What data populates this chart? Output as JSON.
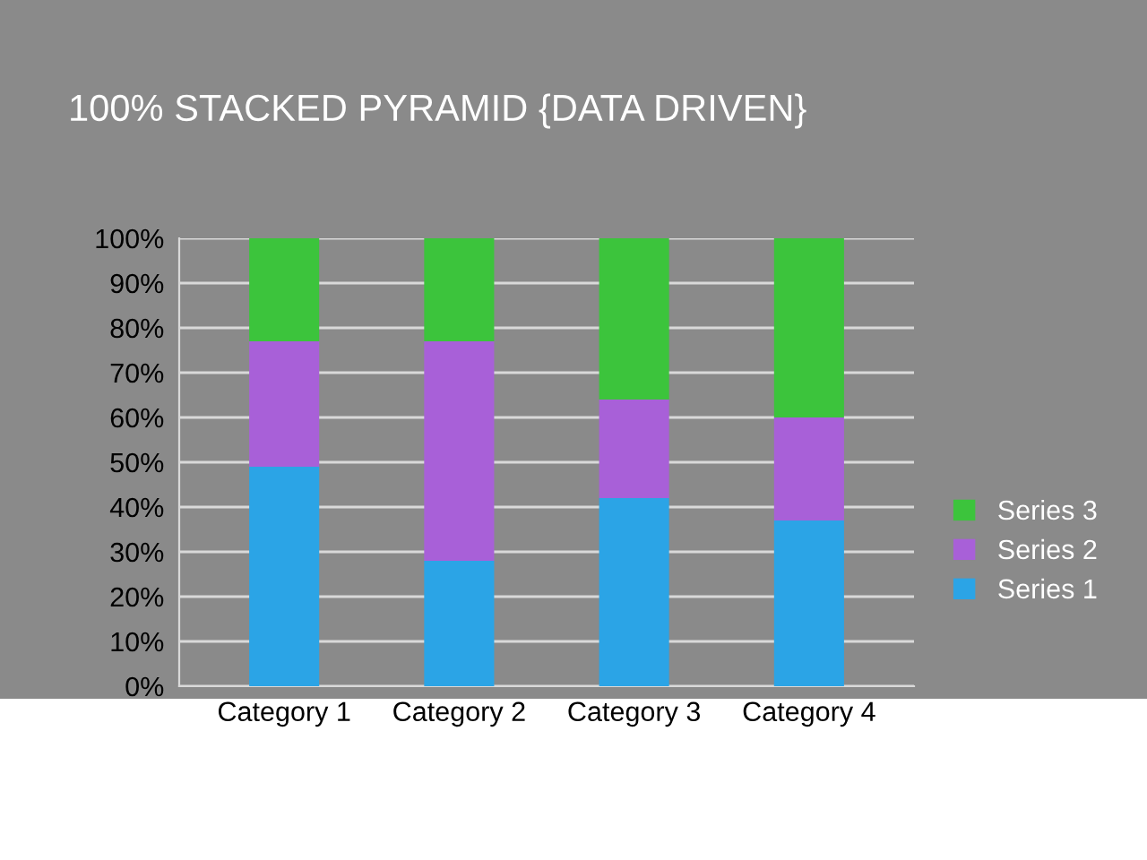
{
  "chart_data": {
    "type": "bar",
    "stacked": true,
    "title": "100% STACKED PYRAMID {DATA DRIVEN}",
    "categories": [
      "Category 1",
      "Category 2",
      "Category 3",
      "Category 4"
    ],
    "series": [
      {
        "name": "Series 1",
        "color": "#2ba4e6",
        "values": [
          49,
          28,
          42,
          37
        ]
      },
      {
        "name": "Series 2",
        "color": "#a860d8",
        "values": [
          28,
          49,
          22,
          23
        ]
      },
      {
        "name": "Series 3",
        "color": "#3cc43c",
        "values": [
          23,
          23,
          36,
          40
        ]
      }
    ],
    "ylim": [
      0,
      100
    ],
    "yticks": [
      {
        "value": 0,
        "label": "0%"
      },
      {
        "value": 10,
        "label": "10%"
      },
      {
        "value": 20,
        "label": "20%"
      },
      {
        "value": 30,
        "label": "30%"
      },
      {
        "value": 40,
        "label": "40%"
      },
      {
        "value": 50,
        "label": "50%"
      },
      {
        "value": 60,
        "label": "60%"
      },
      {
        "value": 70,
        "label": "70%"
      },
      {
        "value": 80,
        "label": "80%"
      },
      {
        "value": 90,
        "label": "90%"
      },
      {
        "value": 100,
        "label": "100%"
      }
    ],
    "grid": "y",
    "legend": "right"
  }
}
